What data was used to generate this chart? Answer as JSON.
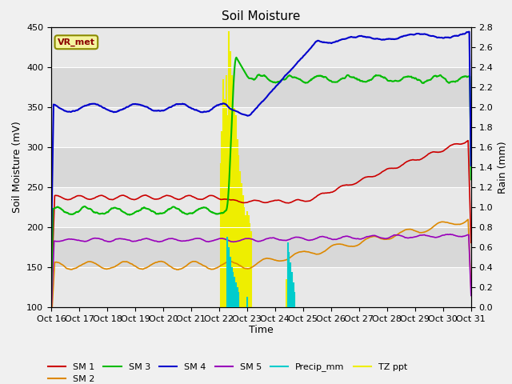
{
  "title": "Soil Moisture",
  "ylabel_left": "Soil Moisture (mV)",
  "ylabel_right": "Rain (mm)",
  "xlabel": "Time",
  "ylim_left": [
    100,
    450
  ],
  "ylim_right": [
    0.0,
    2.8
  ],
  "bg_color": "#f0f0f0",
  "plot_bg_color": "#e8e8e8",
  "label_box": "VR_met",
  "yticks_left": [
    100,
    150,
    200,
    250,
    300,
    350,
    400,
    450
  ],
  "x_tick_labels": [
    "Oct 16",
    "Oct 17",
    "Oct 18",
    "Oct 19",
    "Oct 20",
    "Oct 21",
    "Oct 22",
    "Oct 23",
    "Oct 24",
    "Oct 25",
    "Oct 26",
    "Oct 27",
    "Oct 28",
    "Oct 29",
    "Oct 30",
    "Oct 31"
  ],
  "sm1_color": "#cc0000",
  "sm2_color": "#dd8800",
  "sm3_color": "#00bb00",
  "sm4_color": "#0000cc",
  "sm5_color": "#9900bb",
  "precip_color": "#00cccc",
  "tz_color": "#eeee00",
  "legend_items": [
    "SM 1",
    "SM 2",
    "SM 3",
    "SM 4",
    "SM 5",
    "Precip_mm",
    "TZ ppt"
  ]
}
